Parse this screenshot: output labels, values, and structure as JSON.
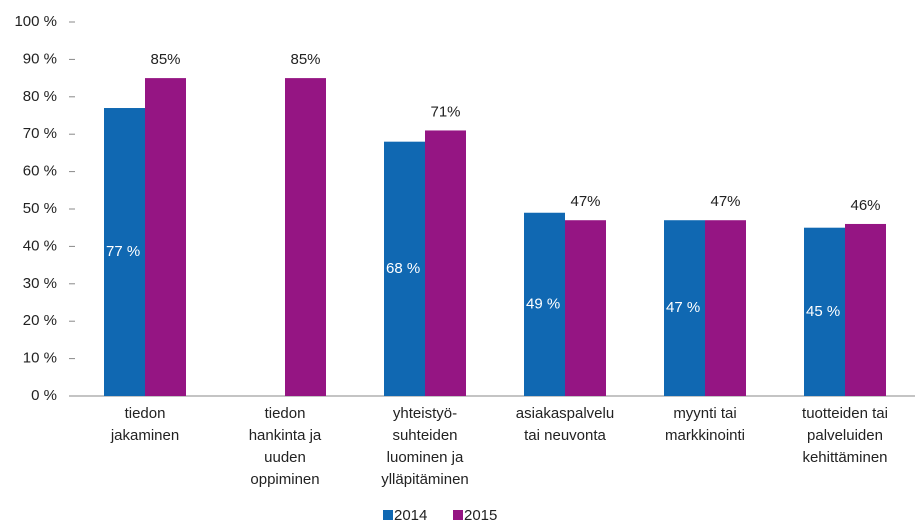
{
  "chart_data": {
    "type": "bar",
    "categories": [
      "tiedon\njakaminen",
      "tiedon\nhankinta ja\nuuden\noppiminen",
      "yhteistyö-\nsuhteiden\nluominen ja\nylläpitäminen",
      "asiakaspalvelu\ntai neuvonta",
      "myynti tai\nmarkkinointi",
      "tuotteiden tai\npalveluiden\nkehittäminen"
    ],
    "series": [
      {
        "name": "2014",
        "color": "#1068b2",
        "values": [
          77,
          null,
          68,
          49,
          47,
          45
        ],
        "value_labels": [
          "77 %",
          null,
          "68 %",
          "49 %",
          "47 %",
          "45 %"
        ]
      },
      {
        "name": "2015",
        "color": "#951583",
        "values": [
          85,
          85,
          71,
          47,
          47,
          46
        ],
        "value_labels": [
          "85%",
          "85%",
          "71%",
          "47%",
          "47%",
          "46%"
        ]
      }
    ],
    "ylim": [
      0,
      100
    ],
    "yticks": [
      {
        "value": 0,
        "label": "0 %"
      },
      {
        "value": 10,
        "label": "10 %"
      },
      {
        "value": 20,
        "label": "20 %"
      },
      {
        "value": 30,
        "label": "30 %"
      },
      {
        "value": 40,
        "label": "40 %"
      },
      {
        "value": 50,
        "label": "50 %"
      },
      {
        "value": 60,
        "label": "60 %"
      },
      {
        "value": 70,
        "label": "70 %"
      },
      {
        "value": 80,
        "label": "80 %"
      },
      {
        "value": 90,
        "label": "90 %"
      },
      {
        "value": 100,
        "label": "100 %"
      }
    ],
    "grid": false,
    "legend": "bottom"
  }
}
